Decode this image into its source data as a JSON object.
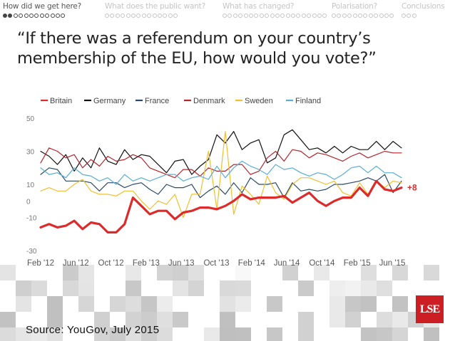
{
  "nav": {
    "sections": [
      {
        "label": "How did we get here?",
        "dots": 12,
        "filled": 2,
        "active": true
      },
      {
        "label": "What does the public want?",
        "dots": 14,
        "filled": 0,
        "active": false
      },
      {
        "label": "What has changed?",
        "dots": 20,
        "filled": 0,
        "active": false
      },
      {
        "label": "Polarisation?",
        "dots": 12,
        "filled": 0,
        "active": false
      },
      {
        "label": "Conclusions",
        "dots": 3,
        "filled": 0,
        "active": false
      }
    ]
  },
  "slide": {
    "title_line1": "“If there was a referendum on your country’s",
    "title_line2": "membership of the EU, how would you vote?”",
    "source": "Source: YouGov, July 2015",
    "logo_text": "LSE"
  },
  "chart_data": {
    "type": "line",
    "title": "",
    "xlabel": "",
    "ylabel": "",
    "ylim": [
      -30,
      50
    ],
    "yticks": [
      "50",
      "30",
      "10",
      "0",
      "-10",
      "-30"
    ],
    "ytick_values": [
      50,
      30,
      10,
      0,
      -10,
      -30
    ],
    "xticks": [
      "Feb '12",
      "Jun '12",
      "Oct '12",
      "Feb '13",
      "Jun '13",
      "Oct '13",
      "Feb '14",
      "Jun '14",
      "Oct '14",
      "Feb '15",
      "Jun '15"
    ],
    "annotation": "+8",
    "series": [
      {
        "name": "Britain",
        "color": "#dd2a2a",
        "width": 3.2,
        "values": [
          -16,
          -14,
          -16,
          -15,
          -12,
          -17,
          -13,
          -14,
          -19,
          -19,
          -14,
          2,
          -3,
          -8,
          -6,
          -6,
          -11,
          -7,
          -6,
          -4,
          -4,
          -5,
          -3,
          0,
          4,
          1,
          2,
          2,
          2,
          3,
          -1,
          2,
          5,
          0,
          -3,
          0,
          2,
          2,
          8,
          3,
          12,
          7,
          6,
          8
        ]
      },
      {
        "name": "Germany",
        "color": "#111111",
        "width": 1.2,
        "values": [
          30,
          27,
          22,
          28,
          18,
          26,
          20,
          32,
          24,
          22,
          31,
          25,
          28,
          27,
          22,
          17,
          24,
          25,
          16,
          21,
          25,
          40,
          35,
          42,
          31,
          35,
          37,
          23,
          26,
          40,
          43,
          37,
          31,
          32,
          29,
          33,
          29,
          33,
          31,
          31,
          36,
          31,
          36,
          32
        ]
      },
      {
        "name": "France",
        "color": "#2a4a66",
        "width": 1.2,
        "values": [
          16,
          20,
          19,
          12,
          12,
          12,
          11,
          6,
          11,
          11,
          8,
          10,
          11,
          7,
          4,
          10,
          8,
          8,
          10,
          2,
          6,
          9,
          4,
          11,
          5,
          14,
          10,
          10,
          11,
          2,
          11,
          6,
          7,
          6,
          7,
          10,
          10,
          11,
          12,
          14,
          12,
          16,
          5,
          12
        ]
      },
      {
        "name": "Denmark",
        "color": "#b3262e",
        "width": 1.2,
        "values": [
          23,
          32,
          30,
          26,
          28,
          20,
          25,
          21,
          27,
          24,
          25,
          28,
          26,
          20,
          18,
          16,
          14,
          19,
          19,
          15,
          20,
          18,
          18,
          22,
          22,
          16,
          18,
          26,
          30,
          24,
          31,
          30,
          26,
          29,
          28,
          26,
          24,
          27,
          29,
          26,
          28,
          30,
          29,
          29
        ]
      },
      {
        "name": "Sweden",
        "color": "#f0c030",
        "width": 1.2,
        "values": [
          6,
          8,
          6,
          6,
          10,
          13,
          6,
          4,
          4,
          3,
          6,
          6,
          0,
          -5,
          0,
          -2,
          4,
          -10,
          4,
          4,
          30,
          -5,
          42,
          -8,
          9,
          4,
          -2,
          15,
          5,
          1,
          10,
          14,
          14,
          12,
          10,
          12,
          5,
          3,
          11,
          4,
          12,
          8,
          12,
          11
        ]
      },
      {
        "name": "Finland",
        "color": "#5aaed2",
        "width": 1.2,
        "values": [
          20,
          16,
          17,
          14,
          20,
          16,
          15,
          12,
          14,
          10,
          16,
          12,
          14,
          12,
          14,
          16,
          16,
          12,
          14,
          15,
          13,
          21,
          14,
          20,
          24,
          21,
          19,
          16,
          22,
          19,
          20,
          17,
          15,
          17,
          16,
          13,
          16,
          20,
          21,
          17,
          21,
          17,
          17,
          14
        ]
      }
    ]
  }
}
